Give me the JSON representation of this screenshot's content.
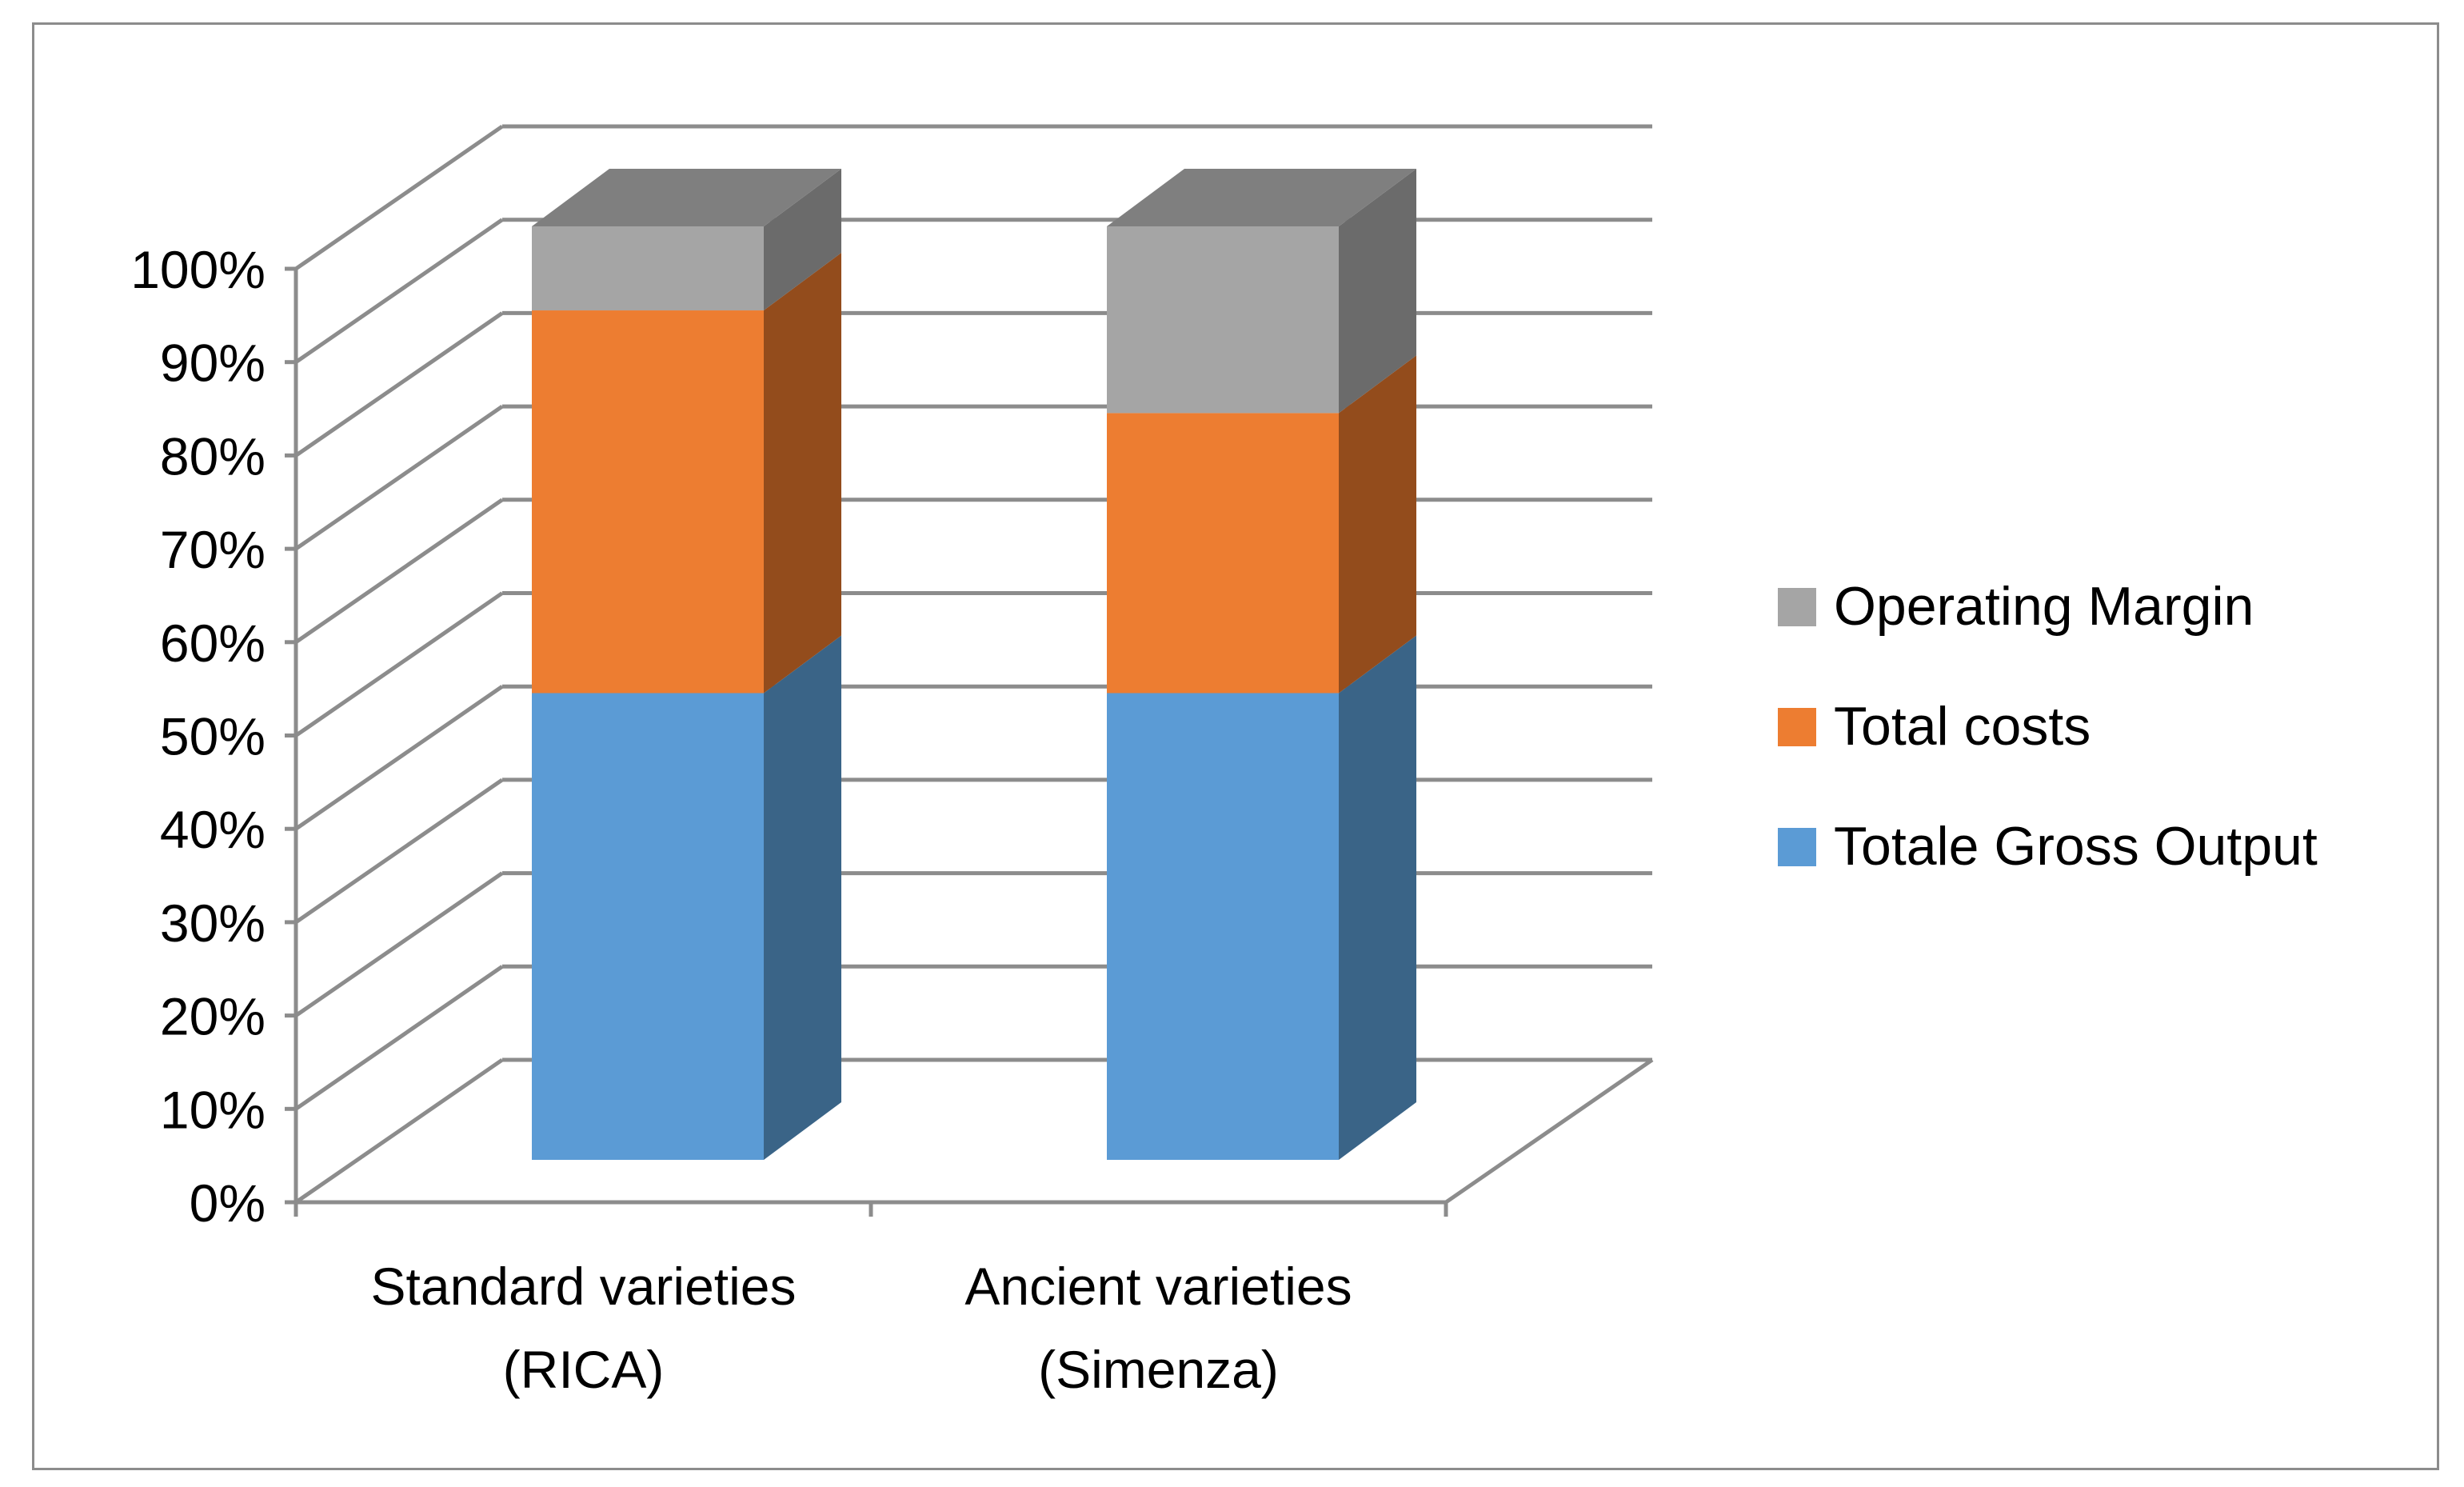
{
  "chart_data": {
    "type": "bar",
    "stacked": true,
    "three_d": true,
    "categories": [
      "Standard varieties (RICA)",
      "Ancient varieties (Simenza)"
    ],
    "category_lines": [
      [
        "Standard varieties",
        "(RICA)"
      ],
      [
        "Ancient varieties",
        "(Simenza)"
      ]
    ],
    "series": [
      {
        "name": "Totale Gross Output",
        "values": [
          50,
          50
        ],
        "color": "#5b9bd5",
        "side_color": "#3a6487"
      },
      {
        "name": "Total costs",
        "values": [
          41,
          30
        ],
        "color": "#ed7d31",
        "side_color": "#934c1c"
      },
      {
        "name": "Operating Margin",
        "values": [
          9,
          20
        ],
        "color": "#a5a5a5",
        "side_color": "#6b6b6b"
      }
    ],
    "top_color": "#7f7f7f",
    "y_ticks": [
      "0%",
      "10%",
      "20%",
      "30%",
      "40%",
      "50%",
      "60%",
      "70%",
      "80%",
      "90%",
      "100%"
    ],
    "ylim": [
      0,
      100
    ],
    "grid": true,
    "legend_position": "right",
    "legend_order": [
      "Operating Margin",
      "Total costs",
      "Totale Gross Output"
    ],
    "title": "",
    "xlabel": "",
    "ylabel": ""
  }
}
